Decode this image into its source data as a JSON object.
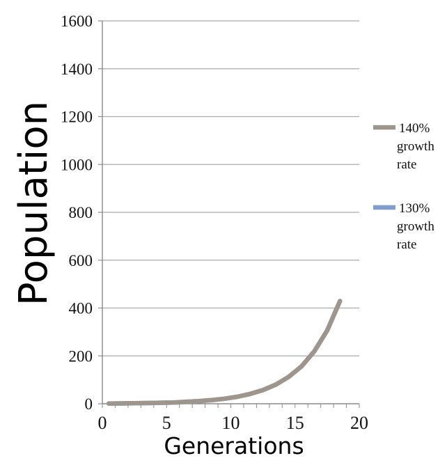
{
  "chart_data": {
    "type": "line",
    "title": "",
    "xlabel": "Generations",
    "ylabel": "Population",
    "xlim": [
      0,
      20
    ],
    "ylim": [
      0,
      1600
    ],
    "xticks": [
      0,
      5,
      10,
      15,
      20
    ],
    "yticks": [
      0,
      200,
      400,
      600,
      800,
      1000,
      1200,
      1400,
      1600
    ],
    "grid": "horizontal",
    "legend": "right",
    "series": [
      {
        "name": "140% growth rate",
        "legend_lines": [
          "140%",
          "growth",
          "rate"
        ],
        "color": "#9e968d",
        "x": [
          0.5,
          1.5,
          2.5,
          3.5,
          4.5,
          5.5,
          6.5,
          7.5,
          8.5,
          9.5,
          10.5,
          11.5,
          12.5,
          13.5,
          14.5,
          15.5,
          16.5,
          17.5,
          18.5
        ],
        "values": [
          1,
          1.4,
          2,
          3,
          4,
          5,
          8,
          11,
          15,
          21,
          29,
          41,
          57,
          80,
          112,
          156,
          219,
          306,
          429
        ]
      },
      {
        "name": "130% growth rate",
        "legend_lines": [
          "130%",
          "growth",
          "rate"
        ],
        "color": "#7f9ccc",
        "x": [
          0.5,
          1.5,
          2.5,
          3.5,
          4.5,
          5.5,
          6.5,
          7.5,
          8.5,
          9.5,
          10.5,
          11.5,
          12.5,
          13.5,
          14.5,
          15.5,
          16.5,
          17.5,
          18.5
        ],
        "values": [
          1,
          1.4,
          2,
          3,
          4,
          5,
          8,
          11,
          15,
          21,
          29,
          41,
          57,
          80,
          112,
          156,
          219,
          306,
          429
        ]
      }
    ]
  }
}
